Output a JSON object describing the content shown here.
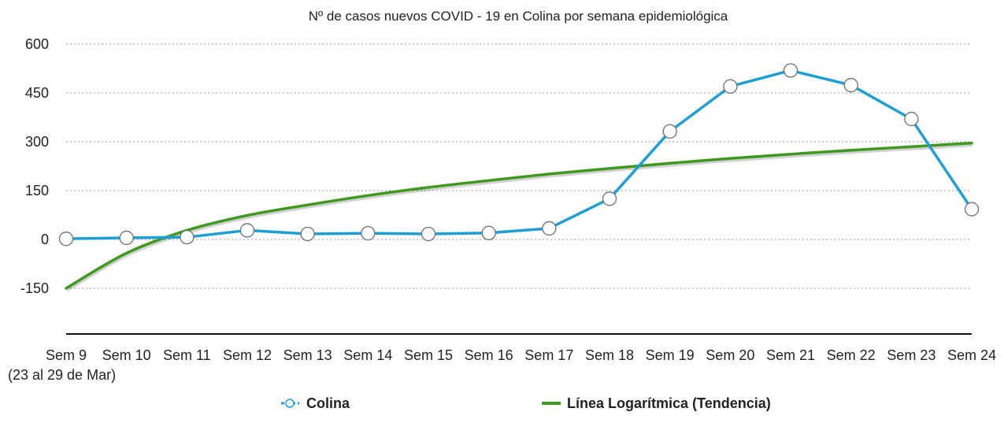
{
  "chart_data": {
    "type": "line",
    "title": "Nº de casos nuevos COVID - 19 en Colina por semana epidemiológica",
    "categories": [
      "Sem 9",
      "Sem 10",
      "Sem 11",
      "Sem 12",
      "Sem 13",
      "Sem 14",
      "Sem 15",
      "Sem 16",
      "Sem 17",
      "Sem 18",
      "Sem 19",
      "Sem 20",
      "Sem 21",
      "Sem 22",
      "Sem 23",
      "Sem 24"
    ],
    "first_category_note": "(23 al 29 de Mar)",
    "y_ticks": [
      600,
      450,
      300,
      150,
      0,
      -150
    ],
    "ylim": [
      -290,
      600
    ],
    "grid": true,
    "legend_position": "bottom",
    "series": [
      {
        "name": "Colina",
        "kind": "line-with-markers",
        "color": "#1E9FD4",
        "values": [
          2,
          5,
          7,
          28,
          17,
          19,
          17,
          20,
          34,
          125,
          332,
          470,
          519,
          474,
          370,
          93
        ]
      },
      {
        "name": "Línea Logarítmica (Tendencia)",
        "kind": "trendline",
        "color": "#3E9A1E",
        "values": [
          -150,
          -42,
          28,
          74,
          106,
          135,
          160,
          181,
          201,
          218,
          234,
          249,
          262,
          274,
          285,
          296
        ]
      }
    ]
  }
}
